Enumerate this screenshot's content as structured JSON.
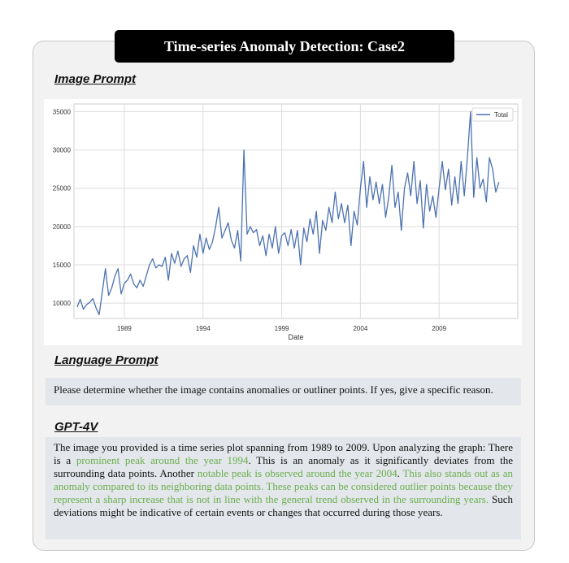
{
  "title": "Time-series Anomaly Detection: Case2",
  "image_prompt_heading": "Image Prompt",
  "language_prompt_heading": "Language Prompt",
  "gpt_heading": "GPT-4V",
  "language_prompt": "Please determine whether the image contains anomalies or outliner points. If yes, give a specific reason.",
  "answer": {
    "p1": "The image you provided is a time series plot spanning from 1989 to 2009. Upon analyzing the graph: There is a ",
    "h1": "prominent peak around the year 1994",
    "p2": ". This is an anomaly as it significantly deviates from the surrounding data points. Another ",
    "h2": "notable peak is observed around the year 2004",
    "p3": ". ",
    "h3": "This also stands out as an anomaly compared to its neighboring data points. These peaks can be considered outlier points because they represent a sharp increase that is not in line with the general trend observed in the surrounding years.",
    "p4": " Such deviations might be indicative of certain events or changes that occurred during those years."
  },
  "colors": {
    "series": "#4c72b0",
    "highlight": "#6aaf4f"
  },
  "chart_data": {
    "type": "line",
    "xlabel": "Date",
    "ylabel": "",
    "legend": "top-right",
    "grid": true,
    "xlim": [
      1985.8,
      2014.0
    ],
    "ylim": [
      8000,
      36000
    ],
    "x_ticks": [
      1989,
      1994,
      1999,
      2004,
      2009
    ],
    "y_ticks": [
      10000,
      15000,
      20000,
      25000,
      30000,
      35000
    ],
    "series": [
      {
        "name": "Total",
        "points": [
          [
            1986.0,
            9500
          ],
          [
            1986.2,
            10500
          ],
          [
            1986.4,
            9200
          ],
          [
            1986.6,
            9800
          ],
          [
            1986.8,
            10100
          ],
          [
            1987.0,
            10600
          ],
          [
            1987.2,
            9400
          ],
          [
            1987.4,
            8500
          ],
          [
            1987.6,
            11500
          ],
          [
            1987.8,
            14500
          ],
          [
            1988.0,
            11000
          ],
          [
            1988.2,
            12000
          ],
          [
            1988.4,
            13500
          ],
          [
            1988.6,
            14500
          ],
          [
            1988.8,
            11200
          ],
          [
            1989.0,
            12600
          ],
          [
            1989.2,
            13000
          ],
          [
            1989.4,
            13800
          ],
          [
            1989.6,
            12500
          ],
          [
            1989.8,
            12000
          ],
          [
            1990.0,
            13000
          ],
          [
            1990.2,
            12200
          ],
          [
            1990.4,
            13600
          ],
          [
            1990.6,
            15000
          ],
          [
            1990.8,
            15800
          ],
          [
            1991.0,
            14600
          ],
          [
            1991.2,
            15000
          ],
          [
            1991.4,
            14800
          ],
          [
            1991.6,
            16000
          ],
          [
            1991.8,
            13000
          ],
          [
            1992.0,
            16500
          ],
          [
            1992.2,
            15200
          ],
          [
            1992.4,
            16800
          ],
          [
            1992.6,
            14800
          ],
          [
            1992.8,
            15800
          ],
          [
            1993.0,
            16200
          ],
          [
            1993.2,
            14000
          ],
          [
            1993.4,
            17500
          ],
          [
            1993.6,
            16000
          ],
          [
            1993.8,
            19000
          ],
          [
            1994.0,
            16500
          ],
          [
            1994.2,
            18500
          ],
          [
            1994.4,
            17000
          ],
          [
            1994.6,
            18000
          ],
          [
            1994.8,
            20000
          ],
          [
            1995.0,
            22500
          ],
          [
            1995.2,
            18500
          ],
          [
            1995.4,
            19500
          ],
          [
            1995.6,
            20500
          ],
          [
            1995.8,
            18200
          ],
          [
            1996.0,
            17200
          ],
          [
            1996.2,
            19500
          ],
          [
            1996.4,
            15500
          ],
          [
            1996.6,
            30000
          ],
          [
            1996.8,
            19000
          ],
          [
            1997.0,
            20000
          ],
          [
            1997.2,
            19200
          ],
          [
            1997.4,
            19600
          ],
          [
            1997.6,
            17500
          ],
          [
            1997.8,
            18800
          ],
          [
            1998.0,
            16200
          ],
          [
            1998.2,
            19000
          ],
          [
            1998.4,
            17200
          ],
          [
            1998.6,
            20000
          ],
          [
            1998.8,
            16500
          ],
          [
            1999.0,
            18800
          ],
          [
            1999.2,
            19200
          ],
          [
            1999.4,
            17500
          ],
          [
            1999.6,
            19600
          ],
          [
            1999.8,
            17200
          ],
          [
            2000.0,
            19500
          ],
          [
            2000.2,
            15000
          ],
          [
            2000.4,
            19800
          ],
          [
            2000.6,
            18000
          ],
          [
            2000.8,
            21000
          ],
          [
            2001.0,
            19000
          ],
          [
            2001.2,
            22000
          ],
          [
            2001.4,
            16500
          ],
          [
            2001.6,
            20800
          ],
          [
            2001.8,
            19500
          ],
          [
            2002.0,
            22500
          ],
          [
            2002.2,
            20500
          ],
          [
            2002.4,
            24500
          ],
          [
            2002.6,
            21000
          ],
          [
            2002.8,
            23000
          ],
          [
            2003.0,
            20500
          ],
          [
            2003.2,
            22800
          ],
          [
            2003.4,
            17500
          ],
          [
            2003.6,
            22000
          ],
          [
            2003.8,
            20200
          ],
          [
            2004.0,
            25000
          ],
          [
            2004.2,
            28500
          ],
          [
            2004.4,
            22500
          ],
          [
            2004.6,
            26500
          ],
          [
            2004.8,
            23500
          ],
          [
            2005.0,
            25800
          ],
          [
            2005.2,
            23000
          ],
          [
            2005.4,
            25500
          ],
          [
            2005.6,
            21200
          ],
          [
            2005.8,
            23800
          ],
          [
            2006.0,
            28000
          ],
          [
            2006.2,
            22500
          ],
          [
            2006.4,
            24500
          ],
          [
            2006.6,
            19500
          ],
          [
            2006.8,
            25000
          ],
          [
            2007.0,
            27000
          ],
          [
            2007.2,
            24000
          ],
          [
            2007.4,
            28500
          ],
          [
            2007.6,
            23000
          ],
          [
            2007.8,
            26000
          ],
          [
            2008.0,
            19800
          ],
          [
            2008.2,
            25500
          ],
          [
            2008.4,
            22000
          ],
          [
            2008.6,
            24000
          ],
          [
            2008.8,
            21200
          ],
          [
            2009.0,
            25000
          ],
          [
            2009.2,
            28500
          ],
          [
            2009.4,
            24800
          ],
          [
            2009.6,
            27500
          ],
          [
            2009.8,
            22800
          ],
          [
            2010.0,
            26500
          ],
          [
            2010.2,
            23000
          ],
          [
            2010.4,
            28500
          ],
          [
            2010.6,
            24000
          ],
          [
            2010.8,
            29000
          ],
          [
            2011.0,
            35000
          ],
          [
            2011.2,
            23800
          ],
          [
            2011.4,
            29000
          ],
          [
            2011.6,
            25000
          ],
          [
            2011.8,
            26200
          ],
          [
            2012.0,
            23200
          ],
          [
            2012.2,
            29000
          ],
          [
            2012.4,
            27500
          ],
          [
            2012.6,
            24500
          ],
          [
            2012.8,
            25800
          ]
        ]
      }
    ]
  }
}
